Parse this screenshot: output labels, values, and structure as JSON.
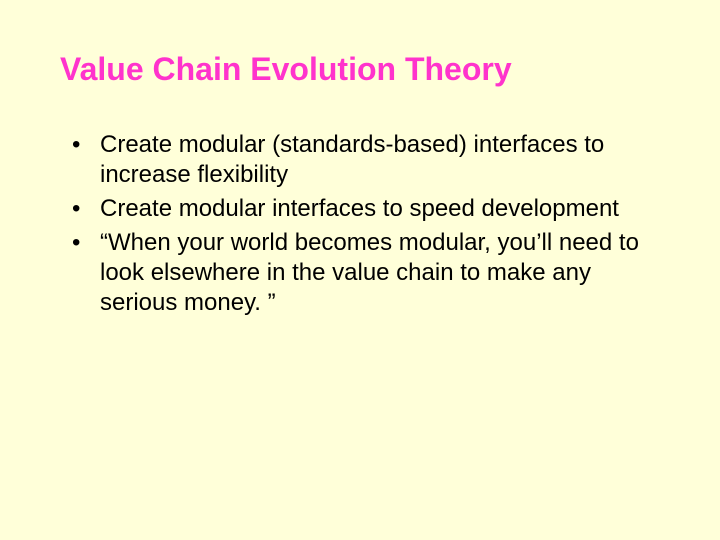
{
  "slide": {
    "background_color": "#ffffd9",
    "title": {
      "text": "Value Chain Evolution Theory",
      "color": "#ff33cc",
      "font_size": 32,
      "font_weight": "bold"
    },
    "body": {
      "text_color": "#000000",
      "font_size": 24,
      "bullet_char": "•",
      "items": [
        "Create modular (standards-based) interfaces to increase flexibility",
        "Create modular interfaces to speed development",
        "“When your world becomes modular, you’ll need to look elsewhere in the value chain to make any serious money. ”"
      ]
    }
  }
}
